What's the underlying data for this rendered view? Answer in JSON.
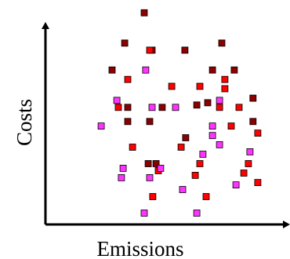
{
  "chart_data": {
    "type": "scatter",
    "title": "",
    "xlabel": "Emissions",
    "ylabel": "Costs",
    "grid": false,
    "legend": "none",
    "xlim": [
      0,
      100
    ],
    "ylim": [
      0,
      100
    ],
    "series": [
      {
        "color": "#8b0000",
        "points": [
          {
            "x": 34.0,
            "y": 99.9
          },
          {
            "x": 23.8,
            "y": 84.8
          },
          {
            "x": 38.1,
            "y": 81.3
          },
          {
            "x": 55.3,
            "y": 81.3
          },
          {
            "x": 74.6,
            "y": 84.8
          },
          {
            "x": 17.2,
            "y": 71.4
          },
          {
            "x": 69.7,
            "y": 71.4
          },
          {
            "x": 81.1,
            "y": 71.4
          },
          {
            "x": 67.2,
            "y": 55.1
          },
          {
            "x": 90.9,
            "y": 57.4
          },
          {
            "x": 25.4,
            "y": 52.8
          },
          {
            "x": 43.4,
            "y": 52.8
          },
          {
            "x": 61.5,
            "y": 54.0
          },
          {
            "x": 25.4,
            "y": 45.8
          },
          {
            "x": 36.9,
            "y": 45.8
          },
          {
            "x": 55.7,
            "y": 37.7
          },
          {
            "x": 90.9,
            "y": 45.8
          },
          {
            "x": 36.1,
            "y": 24.8
          },
          {
            "x": 40.2,
            "y": 24.8
          }
        ]
      },
      {
        "color": "#ff0000",
        "points": [
          {
            "x": 36.9,
            "y": 81.3
          },
          {
            "x": 25.4,
            "y": 66.7
          },
          {
            "x": 48.4,
            "y": 63.3
          },
          {
            "x": 63.1,
            "y": 63.3
          },
          {
            "x": 76.2,
            "y": 66.7
          },
          {
            "x": 76.2,
            "y": 62.1
          },
          {
            "x": 20.5,
            "y": 52.8
          },
          {
            "x": 73.4,
            "y": 52.8
          },
          {
            "x": 83.6,
            "y": 52.8
          },
          {
            "x": 79.5,
            "y": 43.5
          },
          {
            "x": 93.4,
            "y": 40.0
          },
          {
            "x": 27.9,
            "y": 33.0
          },
          {
            "x": 53.3,
            "y": 33.0
          },
          {
            "x": 41.4,
            "y": 21.3
          },
          {
            "x": 63.1,
            "y": 24.8
          },
          {
            "x": 88.5,
            "y": 24.8
          },
          {
            "x": 86.1,
            "y": 20.1
          },
          {
            "x": 60.7,
            "y": 19.0
          },
          {
            "x": 93.4,
            "y": 15.4
          },
          {
            "x": 38.5,
            "y": 8.4
          },
          {
            "x": 66.4,
            "y": 8.4
          }
        ]
      },
      {
        "color": "#ff33ff",
        "points": [
          {
            "x": 34.8,
            "y": 71.4
          },
          {
            "x": 19.7,
            "y": 56.3
          },
          {
            "x": 38.1,
            "y": 52.8
          },
          {
            "x": 50.4,
            "y": 52.8
          },
          {
            "x": 73.4,
            "y": 56.3
          },
          {
            "x": 11.5,
            "y": 43.5
          },
          {
            "x": 69.7,
            "y": 43.5
          },
          {
            "x": 69.7,
            "y": 38.8
          },
          {
            "x": 73.4,
            "y": 34.2
          },
          {
            "x": 89.3,
            "y": 30.7
          },
          {
            "x": 64.7,
            "y": 29.5
          },
          {
            "x": 23.0,
            "y": 22.5
          },
          {
            "x": 42.6,
            "y": 22.5
          },
          {
            "x": 22.1,
            "y": 17.8
          },
          {
            "x": 36.9,
            "y": 17.8
          },
          {
            "x": 54.1,
            "y": 11.9
          },
          {
            "x": 82.0,
            "y": 14.2
          },
          {
            "x": 34.0,
            "y": 0.2
          },
          {
            "x": 61.5,
            "y": 0.2
          }
        ]
      }
    ]
  }
}
